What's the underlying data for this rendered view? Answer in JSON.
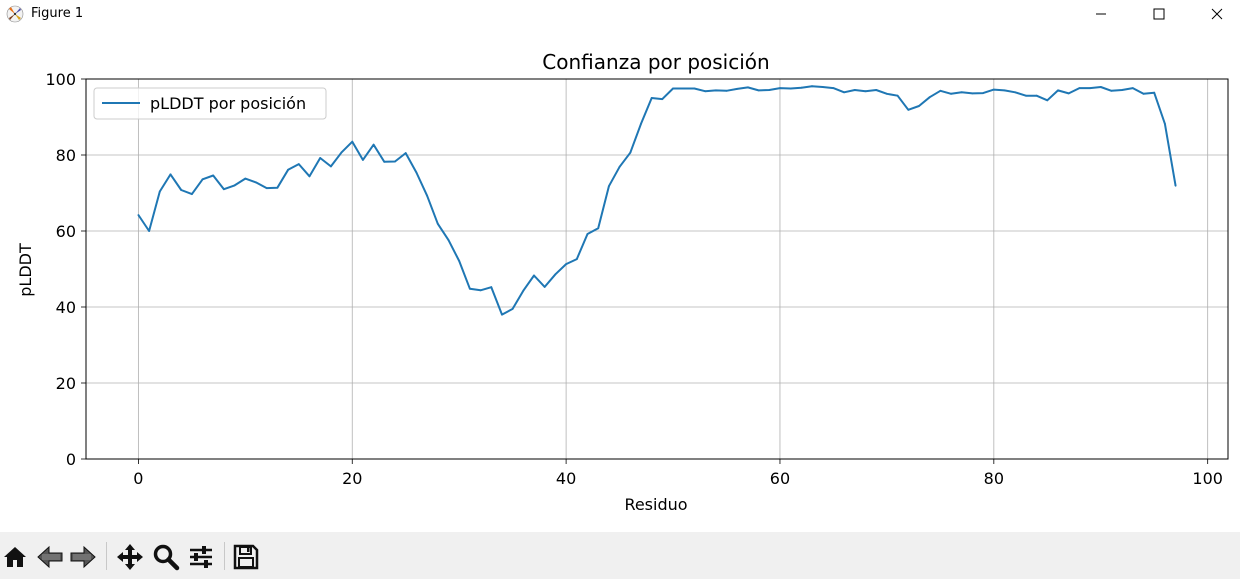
{
  "window": {
    "title": "Figure 1",
    "icon": "matplotlib-logo-icon",
    "controls": [
      "minimize-icon",
      "maximize-icon",
      "close-icon"
    ]
  },
  "toolbar": {
    "buttons": [
      {
        "name": "home-button",
        "icon": "home-icon"
      },
      {
        "name": "back-button",
        "icon": "back-arrow-icon"
      },
      {
        "name": "forward-button",
        "icon": "forward-arrow-icon"
      },
      {
        "name": "pan-button",
        "icon": "move-arrows-icon"
      },
      {
        "name": "zoom-button",
        "icon": "magnifier-icon"
      },
      {
        "name": "configure-subplots-button",
        "icon": "sliders-icon"
      },
      {
        "name": "save-button",
        "icon": "floppy-disk-icon"
      }
    ]
  },
  "chart_data": {
    "type": "line",
    "title": "Confianza por posición",
    "xlabel": "Residuo",
    "ylabel": "pLDDT",
    "xlim": [
      -4.9,
      101.9
    ],
    "ylim": [
      0,
      100
    ],
    "xticks": [
      0,
      20,
      40,
      60,
      80,
      100
    ],
    "yticks": [
      0,
      20,
      40,
      60,
      80,
      100
    ],
    "grid": true,
    "legend_position": "upper left",
    "series": [
      {
        "name": "pLDDT por posición",
        "color": "#1f77b4",
        "x": [
          0,
          1,
          2,
          3,
          4,
          5,
          6,
          7,
          8,
          9,
          10,
          11,
          12,
          13,
          14,
          15,
          16,
          17,
          18,
          19,
          20,
          21,
          22,
          23,
          24,
          25,
          26,
          27,
          28,
          29,
          30,
          31,
          32,
          33,
          34,
          35,
          36,
          37,
          38,
          39,
          40,
          41,
          42,
          43,
          44,
          45,
          46,
          47,
          48,
          49,
          50,
          51,
          52,
          53,
          54,
          55,
          56,
          57,
          58,
          59,
          60,
          61,
          62,
          63,
          64,
          65,
          66,
          67,
          68,
          69,
          70,
          71,
          72,
          73,
          74,
          75,
          76,
          77,
          78,
          79,
          80,
          81,
          82,
          83,
          84,
          85,
          86,
          87,
          88,
          89,
          90,
          91,
          92,
          93,
          94,
          95,
          96,
          97
        ],
        "values": [
          64.2,
          60,
          70.4,
          74.9,
          70.8,
          69.7,
          73.6,
          74.6,
          71,
          72,
          73.8,
          72.8,
          71.3,
          71.4,
          76.1,
          77.6,
          74.4,
          79.2,
          77,
          80.7,
          83.5,
          78.7,
          82.7,
          78.2,
          78.3,
          80.5,
          75.4,
          69.3,
          61.9,
          57.6,
          52.1,
          44.8,
          44.4,
          45.2,
          38,
          39.5,
          44.3,
          48.3,
          45.3,
          48.6,
          51.3,
          52.6,
          59.2,
          60.7,
          71.8,
          76.9,
          80.6,
          88.2,
          95,
          94.7,
          97.5,
          97.5,
          97.5,
          96.8,
          97,
          96.9,
          97.4,
          97.8,
          97,
          97.1,
          97.6,
          97.5,
          97.7,
          98.1,
          97.9,
          97.6,
          96.5,
          97.1,
          96.8,
          97.1,
          96.1,
          95.6,
          91.9,
          92.9,
          95.2,
          96.9,
          96.1,
          96.5,
          96.2,
          96.3,
          97.2,
          97,
          96.5,
          95.6,
          95.6,
          94.4,
          97,
          96.2,
          97.6,
          97.6,
          97.9,
          96.9,
          97.1,
          97.6,
          96.1,
          96.4,
          88.2,
          71.9
        ]
      }
    ]
  }
}
